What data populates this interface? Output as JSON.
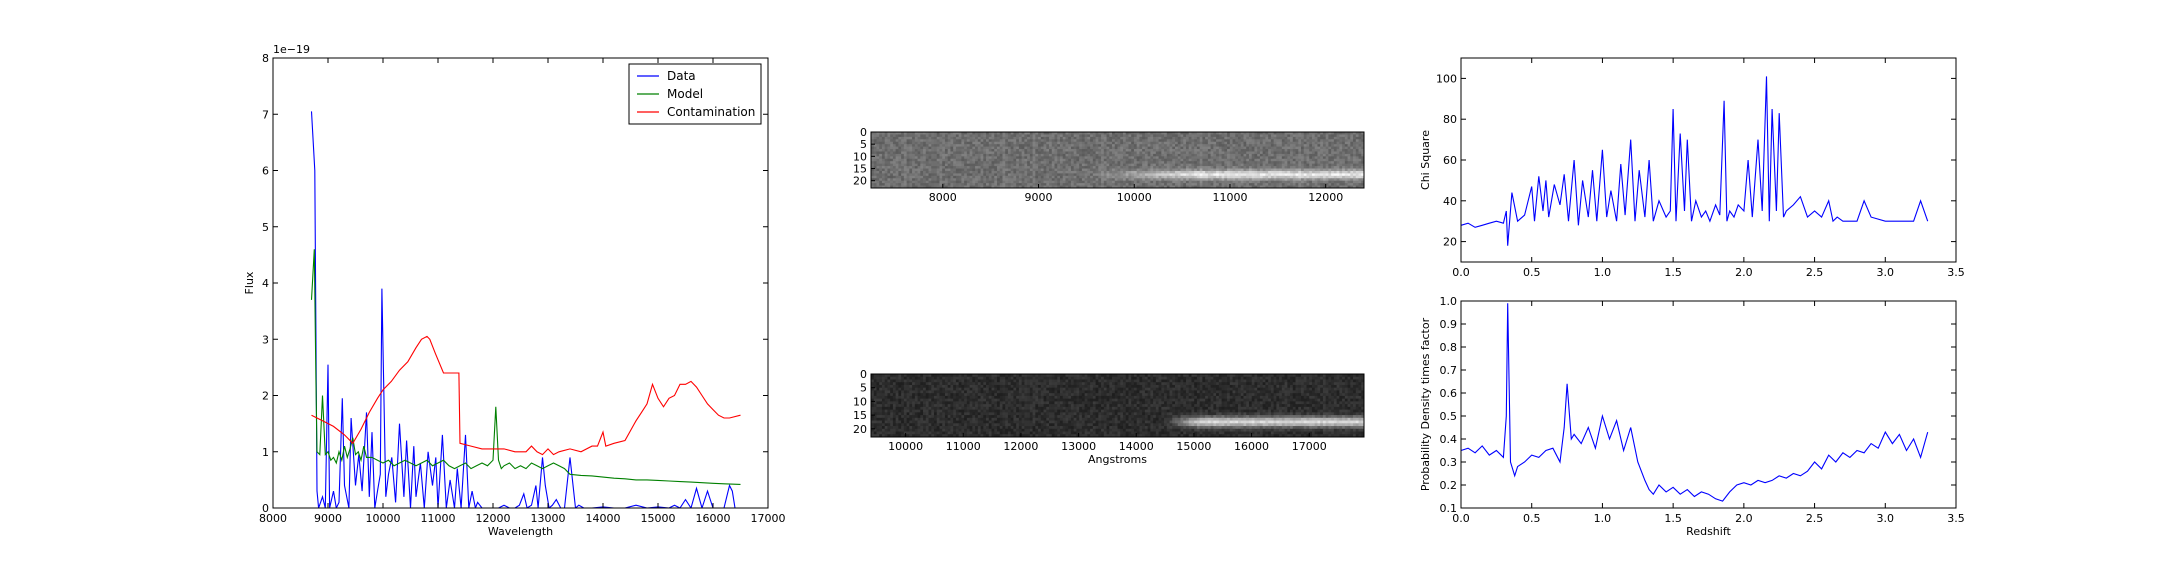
{
  "chart_data": [
    {
      "type": "line",
      "xlabel": "Wavelength",
      "ylabel": "Flux",
      "offset_label": "1e−19",
      "xlim": [
        8000,
        17000
      ],
      "ylim": [
        0,
        8
      ],
      "xticks": [
        8000,
        9000,
        10000,
        11000,
        12000,
        13000,
        14000,
        15000,
        16000,
        17000
      ],
      "yticks": [
        0,
        1,
        2,
        3,
        4,
        5,
        6,
        7,
        8
      ],
      "legend_position": "upper right",
      "series": [
        {
          "name": "Data",
          "color": "#0000ff",
          "x": [
            8700,
            8760,
            8800,
            8830,
            8900,
            8950,
            9000,
            9030,
            9100,
            9150,
            9200,
            9260,
            9300,
            9380,
            9420,
            9500,
            9560,
            9620,
            9700,
            9750,
            9800,
            9850,
            9900,
            9950,
            9980,
            10050,
            10100,
            10160,
            10230,
            10300,
            10380,
            10430,
            10500,
            10560,
            10600,
            10680,
            10750,
            10820,
            10900,
            10960,
            11000,
            11080,
            11150,
            11220,
            11300,
            11350,
            11420,
            11500,
            11560,
            11620,
            11680,
            11720,
            11800,
            11900,
            12000,
            12100,
            12200,
            12300,
            12400,
            12480,
            12560,
            12620,
            12700,
            12780,
            12820,
            12900,
            12950,
            13020,
            13080,
            13150,
            13230,
            13300,
            13400,
            13500,
            13560,
            13650,
            13800,
            14000,
            14200,
            14400,
            14600,
            14800,
            15000,
            15200,
            15300,
            15400,
            15500,
            15600,
            15700,
            15800,
            15900,
            16000,
            16100,
            16200,
            16300,
            16350,
            16400
          ],
          "y": [
            7.05,
            6.0,
            0.3,
            0,
            0.2,
            0,
            2.55,
            0,
            0.3,
            0,
            0.1,
            1.95,
            0.4,
            0,
            1.6,
            0.4,
            0.95,
            0.3,
            1.7,
            0.2,
            1.35,
            0,
            0.3,
            0.6,
            3.9,
            0.2,
            0.6,
            0.9,
            0.1,
            1.5,
            0.2,
            1.2,
            0,
            1.1,
            0.2,
            0.8,
            0,
            1.0,
            0.4,
            0.9,
            0,
            1.3,
            0,
            0.5,
            0,
            0.7,
            0,
            1.3,
            0,
            0.3,
            0,
            0.1,
            0,
            0,
            0,
            0,
            0.05,
            0,
            0,
            0.05,
            0.25,
            0,
            0.05,
            0.4,
            0,
            0.9,
            0.4,
            0,
            0.05,
            0.15,
            0,
            0,
            0.9,
            0,
            0.05,
            0,
            0,
            0.02,
            0,
            0,
            0.05,
            0,
            0.02,
            0,
            0.05,
            0,
            0.15,
            0,
            0.35,
            0,
            0.3,
            0,
            0,
            0,
            0.4,
            0.3,
            0
          ]
        },
        {
          "name": "Model",
          "color": "#008000",
          "x": [
            8700,
            8750,
            8780,
            8800,
            8850,
            8900,
            8950,
            9000,
            9050,
            9100,
            9150,
            9200,
            9250,
            9300,
            9350,
            9400,
            9450,
            9500,
            9550,
            9600,
            9650,
            9700,
            9800,
            9900,
            10000,
            10100,
            10200,
            10300,
            10400,
            10500,
            10600,
            10700,
            10800,
            10900,
            11000,
            11100,
            11200,
            11300,
            11400,
            11500,
            11600,
            11700,
            11800,
            11900,
            12000,
            12050,
            12100,
            12150,
            12200,
            12300,
            12400,
            12500,
            12600,
            12700,
            12800,
            12900,
            13000,
            13100,
            13200,
            13300,
            13400,
            13600,
            13800,
            14000,
            14200,
            14400,
            14600,
            14800,
            15000,
            15200,
            15400,
            15600,
            15800,
            16000,
            16200,
            16500
          ],
          "y": [
            3.7,
            4.6,
            2.3,
            1.0,
            0.95,
            2.0,
            0.95,
            1.0,
            0.85,
            0.9,
            0.8,
            1.0,
            0.85,
            1.1,
            0.9,
            1.05,
            1.25,
            0.95,
            1.0,
            0.85,
            1.1,
            0.9,
            0.9,
            0.85,
            0.8,
            0.85,
            0.75,
            0.8,
            0.85,
            0.8,
            0.75,
            0.8,
            0.85,
            0.75,
            0.8,
            0.85,
            0.75,
            0.7,
            0.75,
            0.8,
            0.7,
            0.75,
            0.8,
            0.75,
            0.85,
            1.8,
            0.85,
            0.7,
            0.75,
            0.8,
            0.7,
            0.75,
            0.7,
            0.8,
            0.75,
            0.7,
            0.75,
            0.8,
            0.75,
            0.7,
            0.6,
            0.58,
            0.57,
            0.55,
            0.53,
            0.52,
            0.5,
            0.5,
            0.49,
            0.48,
            0.47,
            0.46,
            0.45,
            0.44,
            0.43,
            0.42
          ]
        },
        {
          "name": "Contamination",
          "color": "#ff0000",
          "x": [
            8700,
            8900,
            9100,
            9300,
            9450,
            9600,
            9750,
            9900,
            10000,
            10150,
            10300,
            10450,
            10600,
            10700,
            10800,
            10850,
            10950,
            11100,
            11380,
            11400,
            11600,
            11800,
            12000,
            12200,
            12400,
            12600,
            12700,
            12800,
            12900,
            13000,
            13100,
            13200,
            13400,
            13600,
            13800,
            13900,
            14000,
            14050,
            14200,
            14400,
            14600,
            14700,
            14800,
            14900,
            15000,
            15100,
            15200,
            15300,
            15400,
            15500,
            15600,
            15700,
            15800,
            15900,
            16000,
            16100,
            16200,
            16300,
            16500
          ],
          "y": [
            1.65,
            1.55,
            1.45,
            1.3,
            1.15,
            1.4,
            1.7,
            1.95,
            2.1,
            2.25,
            2.45,
            2.6,
            2.85,
            3.0,
            3.05,
            3.0,
            2.75,
            2.4,
            2.4,
            1.15,
            1.1,
            1.05,
            1.05,
            1.05,
            1.0,
            1.0,
            1.1,
            1.0,
            0.95,
            1.05,
            0.95,
            1.0,
            1.05,
            1.0,
            1.1,
            1.1,
            1.35,
            1.1,
            1.15,
            1.2,
            1.55,
            1.7,
            1.85,
            2.2,
            1.95,
            1.8,
            1.95,
            2.0,
            2.2,
            2.2,
            2.25,
            2.15,
            2.0,
            1.85,
            1.75,
            1.65,
            1.6,
            1.6,
            1.65
          ]
        }
      ]
    },
    {
      "type": "heatmap",
      "xticks": [
        8000,
        9000,
        10000,
        11000,
        12000
      ],
      "yticks": [
        0,
        5,
        10,
        15,
        20
      ],
      "xlim": [
        7250,
        12400
      ],
      "ylim": [
        0,
        23
      ],
      "trace_start": 9500,
      "trace_peak_start": 10600,
      "trace_row": 17
    },
    {
      "type": "heatmap",
      "xlabel": "Angstroms",
      "xticks": [
        10000,
        11000,
        12000,
        13000,
        14000,
        15000,
        16000,
        17000
      ],
      "yticks": [
        0,
        5,
        10,
        15,
        20
      ],
      "xlim": [
        9400,
        17950
      ],
      "ylim": [
        0,
        23
      ],
      "trace_start": 14500,
      "trace_peak_start": 15100,
      "trace_row": 17
    },
    {
      "type": "line",
      "ylabel": "Chi Square",
      "xlim": [
        0.0,
        3.5
      ],
      "ylim": [
        10,
        110
      ],
      "xticks": [
        "0.0",
        "0.5",
        "1.0",
        "1.5",
        "2.0",
        "2.5",
        "3.0",
        "3.5"
      ],
      "yticks": [
        20,
        40,
        60,
        80,
        100
      ],
      "series": [
        {
          "color": "#0000ff",
          "x": [
            0.0,
            0.05,
            0.1,
            0.15,
            0.2,
            0.25,
            0.3,
            0.32,
            0.33,
            0.36,
            0.4,
            0.45,
            0.5,
            0.52,
            0.55,
            0.58,
            0.6,
            0.62,
            0.66,
            0.7,
            0.73,
            0.76,
            0.8,
            0.83,
            0.86,
            0.9,
            0.93,
            0.96,
            1.0,
            1.03,
            1.06,
            1.1,
            1.13,
            1.16,
            1.2,
            1.23,
            1.26,
            1.3,
            1.33,
            1.36,
            1.4,
            1.45,
            1.48,
            1.5,
            1.52,
            1.55,
            1.58,
            1.6,
            1.63,
            1.66,
            1.7,
            1.73,
            1.76,
            1.8,
            1.83,
            1.86,
            1.88,
            1.9,
            1.93,
            1.96,
            2.0,
            2.03,
            2.06,
            2.1,
            2.13,
            2.16,
            2.18,
            2.2,
            2.23,
            2.25,
            2.28,
            2.3,
            2.35,
            2.4,
            2.45,
            2.5,
            2.55,
            2.6,
            2.63,
            2.66,
            2.7,
            2.8,
            2.85,
            2.9,
            3.0,
            3.1,
            3.15,
            3.2,
            3.25,
            3.3
          ],
          "y": [
            28,
            29,
            27,
            28,
            29,
            30,
            29,
            35,
            18,
            44,
            30,
            33,
            47,
            30,
            52,
            35,
            50,
            32,
            48,
            38,
            53,
            30,
            60,
            28,
            50,
            32,
            55,
            30,
            65,
            32,
            45,
            30,
            58,
            33,
            70,
            30,
            55,
            32,
            60,
            30,
            40,
            32,
            35,
            85,
            30,
            73,
            35,
            70,
            30,
            40,
            32,
            35,
            30,
            38,
            33,
            89,
            30,
            35,
            32,
            38,
            35,
            60,
            32,
            70,
            35,
            101,
            30,
            85,
            35,
            83,
            32,
            35,
            38,
            42,
            32,
            35,
            32,
            40,
            30,
            32,
            30,
            30,
            40,
            32,
            30,
            30,
            30,
            30,
            40,
            30
          ]
        }
      ]
    },
    {
      "type": "line",
      "xlabel": "Redshift",
      "ylabel": "Probability Density times factor",
      "xlim": [
        0.0,
        3.5
      ],
      "ylim": [
        0.1,
        1.0
      ],
      "xticks": [
        "0.0",
        "0.5",
        "1.0",
        "1.5",
        "2.0",
        "2.5",
        "3.0",
        "3.5"
      ],
      "yticks": [
        "0.1",
        "0.2",
        "0.3",
        "0.4",
        "0.5",
        "0.6",
        "0.7",
        "0.8",
        "0.9",
        "1.0"
      ],
      "series": [
        {
          "color": "#0000ff",
          "x": [
            0.0,
            0.05,
            0.1,
            0.15,
            0.2,
            0.25,
            0.3,
            0.32,
            0.33,
            0.35,
            0.38,
            0.4,
            0.45,
            0.5,
            0.55,
            0.6,
            0.65,
            0.7,
            0.73,
            0.75,
            0.78,
            0.8,
            0.85,
            0.9,
            0.95,
            1.0,
            1.05,
            1.1,
            1.15,
            1.2,
            1.25,
            1.3,
            1.33,
            1.36,
            1.4,
            1.45,
            1.5,
            1.55,
            1.6,
            1.65,
            1.7,
            1.75,
            1.8,
            1.85,
            1.9,
            1.95,
            2.0,
            2.05,
            2.1,
            2.15,
            2.2,
            2.25,
            2.3,
            2.35,
            2.4,
            2.45,
            2.5,
            2.55,
            2.6,
            2.65,
            2.7,
            2.75,
            2.8,
            2.85,
            2.9,
            2.95,
            3.0,
            3.05,
            3.1,
            3.15,
            3.2,
            3.25,
            3.3
          ],
          "y": [
            0.35,
            0.36,
            0.34,
            0.37,
            0.33,
            0.35,
            0.32,
            0.5,
            0.99,
            0.3,
            0.24,
            0.28,
            0.3,
            0.33,
            0.32,
            0.35,
            0.36,
            0.3,
            0.45,
            0.64,
            0.4,
            0.42,
            0.38,
            0.45,
            0.36,
            0.5,
            0.4,
            0.48,
            0.35,
            0.45,
            0.3,
            0.22,
            0.18,
            0.16,
            0.2,
            0.17,
            0.19,
            0.16,
            0.18,
            0.15,
            0.17,
            0.16,
            0.14,
            0.13,
            0.17,
            0.2,
            0.21,
            0.2,
            0.22,
            0.21,
            0.22,
            0.24,
            0.23,
            0.25,
            0.24,
            0.26,
            0.3,
            0.27,
            0.33,
            0.3,
            0.34,
            0.32,
            0.35,
            0.34,
            0.38,
            0.36,
            0.43,
            0.38,
            0.42,
            0.35,
            0.4,
            0.32,
            0.43
          ]
        }
      ]
    }
  ]
}
